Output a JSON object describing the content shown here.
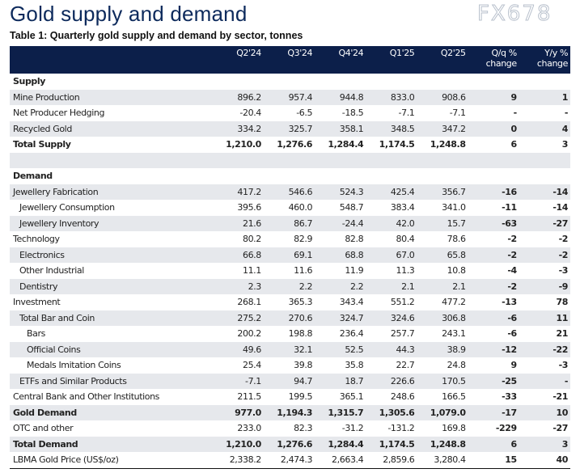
{
  "title": "Gold supply and demand",
  "subtitle": "Table 1: Quarterly gold supply and demand by sector, tonnes",
  "columns": [
    "",
    "Q2'24",
    "Q3'24",
    "Q4'24",
    "Q1'25",
    "Q2'25",
    "Q/q % change",
    "Y/y % change"
  ],
  "rows": [
    {
      "label": "Supply",
      "type": "section",
      "values": [
        "",
        "",
        "",
        "",
        "",
        "",
        ""
      ]
    },
    {
      "label": "Mine Production",
      "indent": 0,
      "values": [
        "896.2",
        "957.4",
        "944.8",
        "833.0",
        "908.6",
        "9",
        "1"
      ]
    },
    {
      "label": "Net Producer Hedging",
      "indent": 0,
      "values": [
        "-20.4",
        "-6.5",
        "-18.5",
        "-7.1",
        "-7.1",
        "-",
        "-"
      ]
    },
    {
      "label": "Recycled Gold",
      "indent": 0,
      "values": [
        "334.2",
        "325.7",
        "358.1",
        "348.5",
        "347.2",
        "0",
        "4"
      ]
    },
    {
      "label": "Total Supply",
      "type": "total",
      "values": [
        "1,210.0",
        "1,276.6",
        "1,284.4",
        "1,174.5",
        "1,248.8",
        "6",
        "3"
      ]
    },
    {
      "label": "",
      "type": "blank",
      "values": [
        "",
        "",
        "",
        "",
        "",
        "",
        ""
      ]
    },
    {
      "label": "Demand",
      "type": "section",
      "values": [
        "",
        "",
        "",
        "",
        "",
        "",
        ""
      ]
    },
    {
      "label": "Jewellery Fabrication",
      "indent": 0,
      "values": [
        "417.2",
        "546.6",
        "524.3",
        "425.4",
        "356.7",
        "-16",
        "-14"
      ]
    },
    {
      "label": "Jewellery Consumption",
      "indent": 1,
      "values": [
        "395.6",
        "460.0",
        "548.7",
        "383.4",
        "341.0",
        "-11",
        "-14"
      ]
    },
    {
      "label": "Jewellery Inventory",
      "indent": 1,
      "values": [
        "21.6",
        "86.7",
        "-24.4",
        "42.0",
        "15.7",
        "-63",
        "-27"
      ]
    },
    {
      "label": "Technology",
      "indent": 0,
      "values": [
        "80.2",
        "82.9",
        "82.8",
        "80.4",
        "78.6",
        "-2",
        "-2"
      ]
    },
    {
      "label": "Electronics",
      "indent": 1,
      "values": [
        "66.8",
        "69.1",
        "68.8",
        "67.0",
        "65.8",
        "-2",
        "-2"
      ]
    },
    {
      "label": "Other Industrial",
      "indent": 1,
      "values": [
        "11.1",
        "11.6",
        "11.9",
        "11.3",
        "10.8",
        "-4",
        "-3"
      ]
    },
    {
      "label": "Dentistry",
      "indent": 1,
      "values": [
        "2.3",
        "2.2",
        "2.2",
        "2.1",
        "2.1",
        "-2",
        "-9"
      ]
    },
    {
      "label": "Investment",
      "indent": 0,
      "values": [
        "268.1",
        "365.3",
        "343.4",
        "551.2",
        "477.2",
        "-13",
        "78"
      ]
    },
    {
      "label": "Total Bar and Coin",
      "indent": 1,
      "values": [
        "275.2",
        "270.6",
        "324.7",
        "324.6",
        "306.8",
        "-6",
        "11"
      ]
    },
    {
      "label": "Bars",
      "indent": 2,
      "values": [
        "200.2",
        "198.8",
        "236.4",
        "257.7",
        "243.1",
        "-6",
        "21"
      ]
    },
    {
      "label": "Official Coins",
      "indent": 2,
      "values": [
        "49.6",
        "32.1",
        "52.5",
        "44.3",
        "38.9",
        "-12",
        "-22"
      ]
    },
    {
      "label": "Medals Imitation Coins",
      "indent": 2,
      "values": [
        "25.4",
        "39.8",
        "35.8",
        "22.7",
        "24.8",
        "9",
        "-3"
      ]
    },
    {
      "label": "ETFs and Similar Products",
      "indent": 1,
      "values": [
        "-7.1",
        "94.7",
        "18.7",
        "226.6",
        "170.5",
        "-25",
        "-"
      ]
    },
    {
      "label": "Central Bank and Other Institutions",
      "indent": 0,
      "values": [
        "211.5",
        "199.5",
        "365.1",
        "248.6",
        "166.5",
        "-33",
        "-21"
      ]
    },
    {
      "label": "Gold Demand",
      "type": "total",
      "values": [
        "977.0",
        "1,194.3",
        "1,315.7",
        "1,305.6",
        "1,079.0",
        "-17",
        "10"
      ]
    },
    {
      "label": "OTC and other",
      "indent": 0,
      "values": [
        "233.0",
        "82.3",
        "-31.2",
        "-131.2",
        "169.8",
        "-229",
        "-27"
      ]
    },
    {
      "label": "Total Demand",
      "type": "total",
      "values": [
        "1,210.0",
        "1,276.6",
        "1,284.4",
        "1,174.5",
        "1,248.8",
        "6",
        "3"
      ]
    },
    {
      "label": "LBMA Gold Price (US$/oz)",
      "indent": 0,
      "values": [
        "2,338.2",
        "2,474.3",
        "2,663.4",
        "2,859.6",
        "3,280.4",
        "15",
        "40"
      ]
    }
  ],
  "watermark": "FX678",
  "colors": {
    "header_bg": "#0c1f4a",
    "title": "#0d2a5c",
    "stripe": "#e6e8ec"
  }
}
